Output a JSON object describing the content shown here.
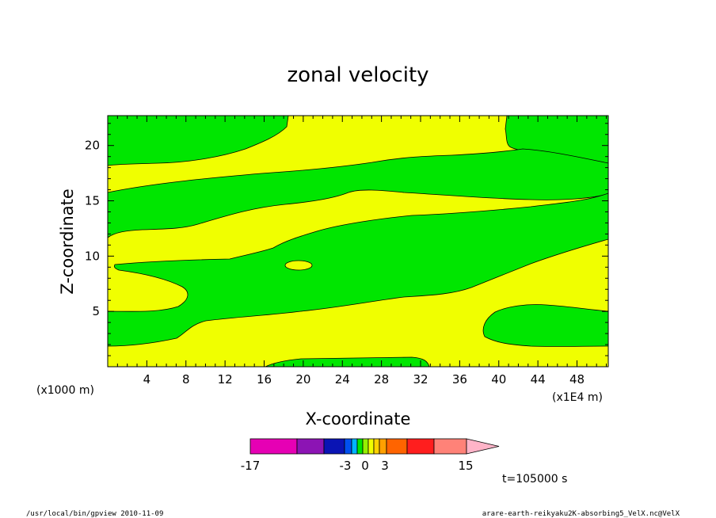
{
  "chart_data": {
    "type": "contour",
    "title": "zonal velocity",
    "xlabel": "X-coordinate",
    "ylabel": "Z-coordinate",
    "x_unit_left": "(x1000 m)",
    "x_unit_right": "(x1E4 m)",
    "xlim": [
      0,
      51.2
    ],
    "ylim": [
      0,
      22.7
    ],
    "x_ticks": [
      4,
      8,
      12,
      16,
      20,
      24,
      28,
      32,
      36,
      40,
      44,
      48
    ],
    "y_ticks": [
      5,
      10,
      15,
      20
    ],
    "fill_colors": {
      "negative_small": "#00e600",
      "positive_small": "#f0ff00"
    },
    "colorbar": {
      "colors": [
        "#e600b4",
        "#8c14b4",
        "#0a14b4",
        "#0050f0",
        "#00b4ff",
        "#00e600",
        "#96f000",
        "#f0ff00",
        "#ffd200",
        "#ffa000",
        "#ff6400",
        "#ff1e1e",
        "#ff8278",
        "#ffb4c8"
      ],
      "tick_labels": [
        {
          "label": "-17",
          "value": -17
        },
        {
          "label": "-3",
          "value": -3
        },
        {
          "label": "0",
          "value": 0
        },
        {
          "label": "3",
          "value": 3
        },
        {
          "label": "15",
          "value": 15
        }
      ]
    },
    "time_label": "t=105000 s"
  },
  "footer": {
    "left": "/usr/local/bin/gpview   2010-11-09",
    "right": "arare-earth-reikyaku2K-absorbing5_VelX.nc@VelX"
  }
}
